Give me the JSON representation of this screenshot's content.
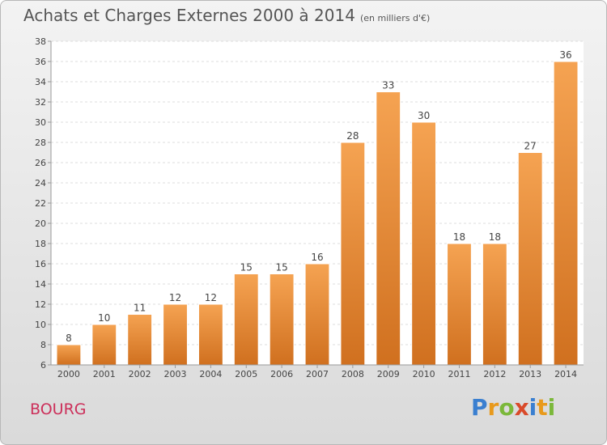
{
  "title": "Achats et Charges Externes 2000 à 2014",
  "subtitle": "(en milliers d'€)",
  "commune": "BOURG",
  "logo": {
    "letters": [
      "P",
      "r",
      "o",
      "x",
      "i",
      "t",
      "i"
    ],
    "colors": [
      "#3a7fd0",
      "#e89a1c",
      "#7bb83a",
      "#d94a2a",
      "#3a7fd0",
      "#e89a1c",
      "#7bb83a"
    ]
  },
  "colors": {
    "bar_top": "#f5a352",
    "bar_bottom": "#d0701f",
    "bar_edge": "#ffffff"
  },
  "chart_data": {
    "type": "bar",
    "categories": [
      "2000",
      "2001",
      "2002",
      "2003",
      "2004",
      "2005",
      "2006",
      "2007",
      "2008",
      "2009",
      "2010",
      "2011",
      "2012",
      "2013",
      "2014"
    ],
    "values": [
      8,
      10,
      11,
      12,
      12,
      15,
      15,
      16,
      28,
      33,
      30,
      18,
      18,
      27,
      36
    ],
    "data_labels": [
      "8",
      "10",
      "11",
      "12",
      "12",
      "15",
      "15",
      "16",
      "28",
      "33",
      "30",
      "18",
      "18",
      "27",
      "36"
    ],
    "ylim": [
      6,
      38
    ],
    "yticks": [
      6,
      8,
      10,
      12,
      14,
      16,
      18,
      20,
      22,
      24,
      26,
      28,
      30,
      32,
      34,
      36,
      38
    ],
    "grid": true,
    "xlabel": "",
    "ylabel": ""
  }
}
